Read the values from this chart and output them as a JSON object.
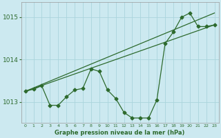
{
  "title": "Graphe pression niveau de la mer (hPa)",
  "background_color": "#cce9f0",
  "grid_color": "#aad4dc",
  "line_color": "#2d6a2d",
  "xlim": [
    -0.5,
    23.5
  ],
  "ylim": [
    1012.5,
    1015.35
  ],
  "yticks": [
    1013,
    1014,
    1015
  ],
  "xticks": [
    0,
    1,
    2,
    3,
    4,
    5,
    6,
    7,
    8,
    9,
    10,
    11,
    12,
    13,
    14,
    15,
    16,
    17,
    18,
    19,
    20,
    21,
    22,
    23
  ],
  "series1_x": [
    0,
    1,
    2,
    3,
    4,
    5,
    6,
    7,
    8,
    9,
    10,
    11,
    12,
    13,
    14,
    15,
    16,
    17,
    18,
    19,
    20,
    21,
    22,
    23
  ],
  "series1_y": [
    1013.25,
    1013.3,
    1013.38,
    1012.92,
    1012.92,
    1013.12,
    1013.28,
    1013.32,
    1013.78,
    1013.72,
    1013.28,
    1013.08,
    1012.75,
    1012.62,
    1012.62,
    1012.62,
    1013.05,
    1014.38,
    1014.65,
    1015.0,
    1015.1,
    1014.78,
    1014.78,
    1014.82
  ],
  "line2_x": [
    0,
    23
  ],
  "line2_y": [
    1013.25,
    1014.82
  ],
  "line3_x": [
    0,
    23
  ],
  "line3_y": [
    1013.25,
    1015.1
  ]
}
